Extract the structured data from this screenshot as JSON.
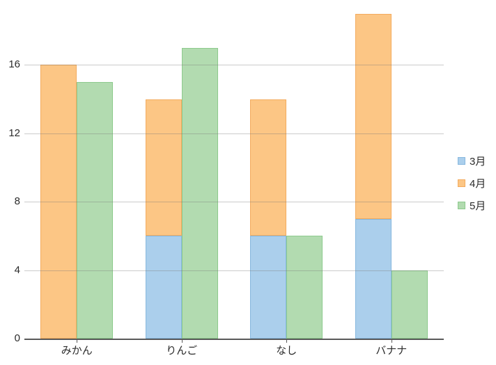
{
  "chart_data": {
    "type": "bar",
    "title": "",
    "xlabel": "",
    "ylabel": "",
    "categories": [
      "みかん",
      "りんご",
      "なし",
      "バナナ"
    ],
    "series": [
      {
        "name": "3月",
        "stack": "a",
        "fill": "#abcfec",
        "border": "#86b7de",
        "values": [
          0,
          6,
          6,
          7
        ]
      },
      {
        "name": "4月",
        "stack": "a",
        "fill": "#fcc685",
        "border": "#f3ab5e",
        "values": [
          16,
          8,
          8,
          12
        ]
      },
      {
        "name": "5月",
        "stack": "b",
        "fill": "#b2dbb0",
        "border": "#8dca8d",
        "values": [
          15,
          17,
          6,
          4
        ]
      }
    ],
    "stacked_totals": {
      "a": [
        16,
        14,
        14,
        19
      ],
      "b": [
        15,
        17,
        6,
        4
      ]
    },
    "y_ticks": [
      0,
      4,
      8,
      12,
      16
    ],
    "ylim": [
      0,
      19.8
    ],
    "grid": true,
    "legend_position": "right"
  },
  "colors": {
    "background": "#ffffff",
    "axis_line": "#595959",
    "gridline": "#cbcbcb",
    "text": "#2b2b2b"
  }
}
